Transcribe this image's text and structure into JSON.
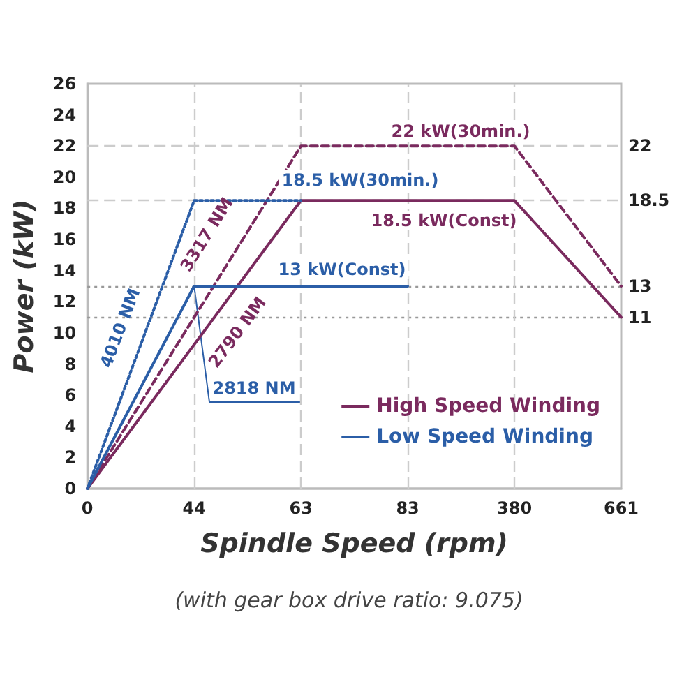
{
  "chart_data": {
    "type": "line",
    "xlabel": "Spindle Speed (rpm)",
    "ylabel": "Power (kW)",
    "categories": [
      "0",
      "44",
      "63",
      "83",
      "380",
      "661"
    ],
    "series": [
      {
        "name": "High Speed Winding",
        "color": "#7a2a5e",
        "line_style": "solid",
        "values": [
          0,
          null,
          18.5,
          18.5,
          18.5,
          11
        ]
      },
      {
        "color": "#7a2a5e",
        "line_style": "dashed",
        "values": [
          0,
          null,
          22,
          22,
          22,
          13
        ]
      },
      {
        "name": "Low Speed Winding",
        "color": "#2b5ea7",
        "line_style": "solid",
        "values": [
          0,
          13,
          13,
          13,
          null,
          null
        ]
      },
      {
        "color": "#2b5ea7",
        "line_style": "dotted",
        "values": [
          0,
          18.5,
          18.5,
          null,
          null,
          null
        ]
      }
    ],
    "ylim": [
      0,
      26
    ],
    "yticks": [
      0,
      2,
      4,
      6,
      8,
      10,
      12,
      14,
      16,
      18,
      20,
      22,
      24,
      26
    ],
    "ref_lines": [
      {
        "axis": "y",
        "value": 22,
        "label": "22",
        "color": "#cccccc",
        "line_style": "dashed"
      },
      {
        "axis": "y",
        "value": 18.5,
        "label": "18.5",
        "color": "#cccccc",
        "line_style": "dashed"
      },
      {
        "axis": "y",
        "value": 13,
        "label": "13",
        "color": "#999999",
        "line_style": "dotted"
      },
      {
        "axis": "y",
        "value": 11,
        "label": "11",
        "color": "#999999",
        "line_style": "dotted"
      },
      {
        "axis": "x",
        "value": "44",
        "label": null,
        "color": "#cccccc",
        "line_style": "dashed"
      },
      {
        "axis": "x",
        "value": "63",
        "label": null,
        "color": "#cccccc",
        "line_style": "dashed"
      },
      {
        "axis": "x",
        "value": "83",
        "label": null,
        "color": "#cccccc",
        "line_style": "dashed"
      },
      {
        "axis": "x",
        "value": "380",
        "label": null,
        "color": "#cccccc",
        "line_style": "dashed"
      }
    ],
    "annotations": [
      "4010 NM",
      "3317 NM",
      "2790 NM",
      "18.5 kW(30min.)",
      "13 kW(Const)",
      "22 kW(30min.)",
      "18.5 kW(Const)",
      {
        "text": "2818 NM",
        "x": "44",
        "y": 13
      },
      "(with gear box drive ratio: 9.075)"
    ],
    "grid": false,
    "legend": "bottom right",
    "marker": "none"
  }
}
